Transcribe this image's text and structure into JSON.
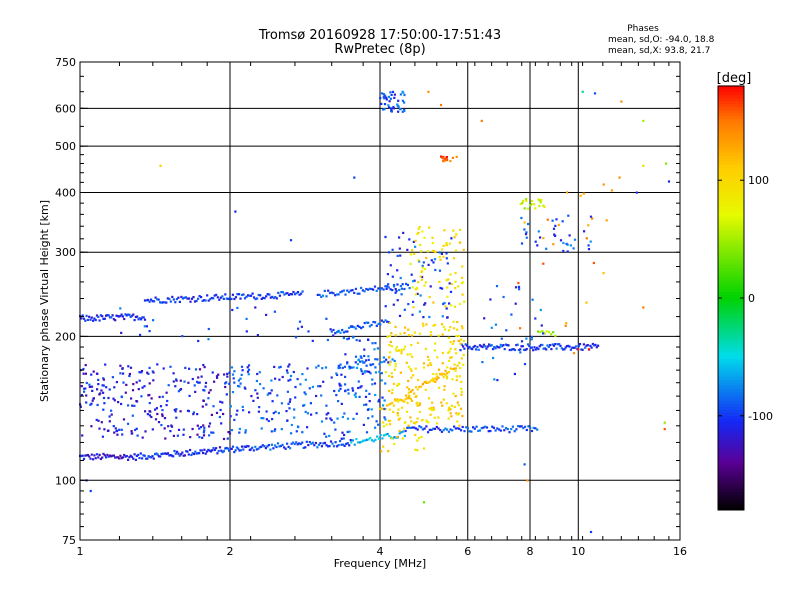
{
  "chart_data": {
    "type": "scatter",
    "title": "Tromsø 20160928 17:50:00-17:51:43",
    "subtitle": "RwPretec (8p)",
    "xlabel": "Frequency [MHz]",
    "ylabel": "Stationary phase Virtual Height [km]",
    "x_scale": "log",
    "y_scale": "log",
    "xlim": [
      1,
      16
    ],
    "ylim": [
      75,
      750
    ],
    "x_ticks": [
      1,
      2,
      4,
      6,
      8,
      10,
      16
    ],
    "y_ticks": [
      75,
      100,
      200,
      300,
      400,
      500,
      600,
      750
    ],
    "grid": true,
    "phases_box": {
      "heading": "Phases",
      "line_o": "mean, sd,O: -94.0, 18.8",
      "line_x": "mean, sd,X:  93.8, 21.7"
    },
    "colorbar": {
      "label": "[deg]",
      "range": [
        -180,
        180
      ],
      "ticks": [
        100,
        0,
        -100
      ],
      "colormap": "rainbow"
    },
    "traces": [
      {
        "x": [
          1.0,
          1.3
        ],
        "y": [
          112,
          112
        ],
        "phase": -118,
        "step": 0.006
      },
      {
        "x": [
          1.3,
          2.2
        ],
        "y": [
          112,
          117
        ],
        "phase": -105,
        "step": 0.006
      },
      {
        "x": [
          2.2,
          3.5
        ],
        "y": [
          117,
          120
        ],
        "phase": -95,
        "step": 0.007
      },
      {
        "x": [
          3.5,
          4.5
        ],
        "y": [
          120,
          125
        ],
        "phase": -60,
        "step": 0.008
      },
      {
        "x": [
          4.5,
          8.3
        ],
        "y": [
          128,
          128
        ],
        "phase": -95,
        "step": 0.008
      },
      {
        "x": [
          1.0,
          1.35
        ],
        "y": [
          218,
          220
        ],
        "phase": -105,
        "step": 0.006
      },
      {
        "x": [
          1.35,
          2.8
        ],
        "y": [
          238,
          245
        ],
        "phase": -100,
        "step": 0.007
      },
      {
        "x": [
          3.0,
          4.6
        ],
        "y": [
          245,
          255
        ],
        "phase": -95,
        "step": 0.008
      },
      {
        "x": [
          3.2,
          4.2
        ],
        "y": [
          205,
          215
        ],
        "phase": -90,
        "step": 0.008
      },
      {
        "x": [
          3.3,
          4.3
        ],
        "y": [
          172,
          180
        ],
        "phase": -85,
        "step": 0.01
      },
      {
        "x": [
          5.8,
          11.0
        ],
        "y": [
          190,
          190
        ],
        "phase": -100,
        "step": 0.006
      },
      {
        "x": [
          8.3,
          9.0
        ],
        "y": [
          203,
          203
        ],
        "phase": 50,
        "step": 0.01
      },
      {
        "x": [
          4.0,
          4.6
        ],
        "y": [
          140,
          150
        ],
        "phase": 110,
        "step": 0.008
      },
      {
        "x": [
          4.5,
          5.8
        ],
        "y": [
          150,
          175
        ],
        "phase": 115,
        "step": 0.008
      }
    ],
    "clusters": [
      {
        "x": [
          1.0,
          2.0
        ],
        "y": [
          122,
          175
        ],
        "phase": -112,
        "n": 260
      },
      {
        "x": [
          2.0,
          3.4
        ],
        "y": [
          122,
          175
        ],
        "phase": -98,
        "n": 160
      },
      {
        "x": [
          3.4,
          4.1
        ],
        "y": [
          125,
          200
        ],
        "phase": -90,
        "n": 90
      },
      {
        "x": [
          4.1,
          5.9
        ],
        "y": [
          130,
          215
        ],
        "phase": 100,
        "n": 220
      },
      {
        "x": [
          4.1,
          5.6
        ],
        "y": [
          215,
          330
        ],
        "phase": -95,
        "n": 70
      },
      {
        "x": [
          4.6,
          5.9
        ],
        "y": [
          230,
          340
        ],
        "phase": 95,
        "n": 80
      },
      {
        "x": [
          4.0,
          4.5
        ],
        "y": [
          590,
          650
        ],
        "phase": -95,
        "n": 45
      },
      {
        "x": [
          5.3,
          5.6
        ],
        "y": [
          465,
          480
        ],
        "phase": 160,
        "n": 14
      },
      {
        "x": [
          7.6,
          8.6
        ],
        "y": [
          370,
          390
        ],
        "phase": 65,
        "n": 20
      },
      {
        "x": [
          7.6,
          11.0
        ],
        "y": [
          300,
          360
        ],
        "phase": -95,
        "n": 35
      },
      {
        "x": [
          6.2,
          8.5
        ],
        "y": [
          160,
          260
        ],
        "phase": -90,
        "n": 30
      },
      {
        "x": [
          7.4,
          12.0
        ],
        "y": [
          170,
          420
        ],
        "phase": 140,
        "n": 22
      },
      {
        "x": [
          4.0,
          5.0
        ],
        "y": [
          115,
          135
        ],
        "phase": 100,
        "n": 25
      },
      {
        "x": [
          1.2,
          3.8
        ],
        "y": [
          195,
          230
        ],
        "phase": -100,
        "n": 35
      }
    ],
    "points": [
      {
        "x": 1.05,
        "y": 95,
        "phase": -100
      },
      {
        "x": 1.03,
        "y": 100,
        "phase": -100
      },
      {
        "x": 1.45,
        "y": 455,
        "phase": 110
      },
      {
        "x": 2.05,
        "y": 365,
        "phase": -110
      },
      {
        "x": 2.65,
        "y": 318,
        "phase": -100
      },
      {
        "x": 3.55,
        "y": 430,
        "phase": -100
      },
      {
        "x": 5.0,
        "y": 650,
        "phase": 140
      },
      {
        "x": 5.3,
        "y": 610,
        "phase": 150
      },
      {
        "x": 5.7,
        "y": 475,
        "phase": 140
      },
      {
        "x": 6.4,
        "y": 565,
        "phase": 150
      },
      {
        "x": 4.9,
        "y": 90,
        "phase": 30
      },
      {
        "x": 7.8,
        "y": 108,
        "phase": -90
      },
      {
        "x": 7.9,
        "y": 100,
        "phase": 140
      },
      {
        "x": 10.2,
        "y": 650,
        "phase": -30
      },
      {
        "x": 10.8,
        "y": 645,
        "phase": -95
      },
      {
        "x": 12.2,
        "y": 620,
        "phase": 140
      },
      {
        "x": 13.5,
        "y": 565,
        "phase": 50
      },
      {
        "x": 12.1,
        "y": 430,
        "phase": 140
      },
      {
        "x": 13.5,
        "y": 455,
        "phase": 100
      },
      {
        "x": 13.1,
        "y": 400,
        "phase": -100
      },
      {
        "x": 15.0,
        "y": 460,
        "phase": 40
      },
      {
        "x": 15.2,
        "y": 422,
        "phase": -110
      },
      {
        "x": 13.5,
        "y": 230,
        "phase": 150
      },
      {
        "x": 14.9,
        "y": 132,
        "phase": 40
      },
      {
        "x": 14.9,
        "y": 128,
        "phase": 160
      },
      {
        "x": 10.6,
        "y": 78,
        "phase": -100
      },
      {
        "x": 10.0,
        "y": 188,
        "phase": 170
      },
      {
        "x": 10.5,
        "y": 188,
        "phase": 175
      },
      {
        "x": 11.4,
        "y": 350,
        "phase": 130
      }
    ]
  }
}
